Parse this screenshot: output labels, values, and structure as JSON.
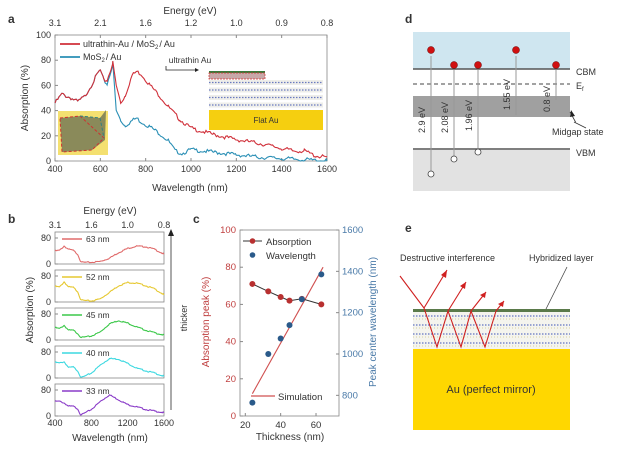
{
  "panel_labels": {
    "a": "a",
    "b": "b",
    "c": "c",
    "d": "d",
    "e": "e"
  },
  "chart_data": [
    {
      "id": "a",
      "type": "line",
      "title": "",
      "top_axis_label": "Energy (eV)",
      "top_ticks": [
        "3.1",
        "2.1",
        "1.6",
        "1.2",
        "1.0",
        "0.9",
        "0.8"
      ],
      "xlabel": "Wavelength (nm)",
      "ylabel": "Absorption (%)",
      "xlim": [
        400,
        1600
      ],
      "ylim": [
        0,
        100
      ],
      "xticks": [
        400,
        600,
        800,
        1000,
        1200,
        1400,
        1600
      ],
      "yticks": [
        0,
        20,
        40,
        60,
        80,
        100
      ],
      "legend_position": "top-left",
      "series": [
        {
          "name": "ultrathin-Au / MoS2/ Au",
          "name_parts": [
            "ultrathin-Au / MoS",
            "2",
            "/ Au"
          ],
          "color": "#d0303a",
          "x": [
            400,
            430,
            470,
            500,
            530,
            560,
            590,
            600,
            615,
            630,
            655,
            670,
            690,
            710,
            740,
            760,
            780,
            820,
            860,
            900,
            950,
            1000,
            1100,
            1200,
            1300,
            1400,
            1450,
            1500,
            1550,
            1600
          ],
          "y": [
            46,
            53,
            50,
            47,
            51,
            60,
            70,
            72,
            64,
            64,
            78,
            60,
            46,
            52,
            68,
            71,
            69,
            60,
            52,
            43,
            33,
            26,
            21,
            17,
            14,
            10,
            8,
            8,
            4,
            3
          ]
        },
        {
          "name": "MoS2/ Au",
          "name_parts": [
            "MoS",
            "2",
            "/ Au"
          ],
          "color": "#2a8fb5",
          "x": [
            400,
            430,
            470,
            500,
            530,
            560,
            590,
            600,
            615,
            630,
            655,
            670,
            690,
            710,
            740,
            760,
            780,
            820,
            860,
            900,
            930,
            960,
            1000,
            1100,
            1200,
            1300,
            1400,
            1500,
            1600
          ],
          "y": [
            46,
            53,
            50,
            47,
            51,
            60,
            70,
            72,
            64,
            61,
            77,
            40,
            32,
            28,
            32,
            34,
            31,
            27,
            22,
            16,
            8,
            6,
            9,
            7,
            5,
            3,
            2,
            1,
            0
          ]
        }
      ],
      "annotations": {
        "inset_label": "ultrathin Au",
        "substrate_label": "Flat Au"
      }
    },
    {
      "id": "b",
      "type": "line",
      "top_axis_label": "Energy (eV)",
      "top_ticks": [
        "3.1",
        "1.6",
        "1.0",
        "0.8"
      ],
      "xlabel": "Wavelength (nm)",
      "ylabel": "Absorption (%)",
      "xlim": [
        400,
        1600
      ],
      "ylim": [
        0,
        80
      ],
      "xticks": [
        400,
        800,
        1200,
        1600
      ],
      "yticks": [
        0,
        80
      ],
      "side_label": "thicker",
      "series": [
        {
          "name": "63 nm",
          "color": "#e06b6b",
          "x": [
            400,
            450,
            500,
            550,
            600,
            650,
            680,
            700,
            800,
            900,
            1000,
            1100,
            1200,
            1300,
            1400,
            1500,
            1600
          ],
          "y": [
            40,
            42,
            55,
            45,
            42,
            30,
            10,
            5,
            5,
            8,
            18,
            35,
            48,
            55,
            53,
            45,
            30
          ]
        },
        {
          "name": "52 nm",
          "color": "#e6c830",
          "x": [
            400,
            450,
            500,
            550,
            600,
            650,
            680,
            700,
            800,
            900,
            1000,
            1100,
            1200,
            1300,
            1400,
            1500,
            1600
          ],
          "y": [
            48,
            46,
            62,
            46,
            45,
            32,
            10,
            5,
            3,
            10,
            30,
            50,
            60,
            58,
            50,
            40,
            22
          ]
        },
        {
          "name": "45 nm",
          "color": "#3cc84a",
          "x": [
            400,
            450,
            500,
            550,
            600,
            650,
            680,
            700,
            800,
            900,
            1000,
            1100,
            1200,
            1300,
            1400,
            1500,
            1600
          ],
          "y": [
            38,
            35,
            45,
            30,
            30,
            20,
            10,
            8,
            12,
            25,
            50,
            60,
            52,
            40,
            30,
            22,
            15
          ]
        },
        {
          "name": "40 nm",
          "color": "#3cd8e0",
          "x": [
            400,
            450,
            500,
            550,
            600,
            650,
            680,
            700,
            800,
            900,
            1000,
            1100,
            1200,
            1300,
            1400,
            1500,
            1600
          ],
          "y": [
            48,
            46,
            50,
            32,
            34,
            22,
            5,
            2,
            15,
            40,
            60,
            58,
            45,
            30,
            22,
            15,
            5
          ]
        },
        {
          "name": "33 nm",
          "color": "#8a3cc8",
          "x": [
            400,
            450,
            500,
            550,
            600,
            650,
            680,
            700,
            800,
            900,
            1000,
            1100,
            1200,
            1300,
            1400,
            1500,
            1600
          ],
          "y": [
            45,
            45,
            40,
            30,
            30,
            22,
            5,
            5,
            20,
            45,
            65,
            50,
            35,
            28,
            20,
            15,
            10
          ]
        }
      ]
    },
    {
      "id": "c",
      "type": "scatter",
      "xlabel": "Thickness (nm)",
      "ylabel": "Absorption peak (%)",
      "y2label": "Peak center wavelength (nm)",
      "xlim": [
        17,
        73
      ],
      "ylim": [
        0,
        100
      ],
      "y2lim": [
        700,
        1600
      ],
      "xticks": [
        20,
        40,
        60
      ],
      "yticks": [
        0,
        20,
        40,
        60,
        80,
        100
      ],
      "y2ticks": [
        800,
        1000,
        1200,
        1400,
        1600
      ],
      "legend_position": "top-left",
      "series": [
        {
          "name": "Absorption",
          "axis": "left",
          "color": "#b83030",
          "line_color": "#333333",
          "x": [
            24,
            33,
            40,
            45,
            52,
            63
          ],
          "y": [
            71,
            67,
            64,
            62,
            63,
            60
          ]
        },
        {
          "name": "Wavelength",
          "axis": "right",
          "color": "#2a5a8a",
          "x": [
            24,
            33,
            40,
            45,
            52,
            63
          ],
          "y": [
            765,
            1000,
            1075,
            1140,
            1265,
            1385
          ]
        },
        {
          "name": "Simulation",
          "axis": "left",
          "color": "#d05050",
          "x": [
            24,
            64
          ],
          "y": [
            12,
            80
          ]
        }
      ]
    }
  ],
  "panel_d": {
    "levels": {
      "cbm": "CBM",
      "ef_main": "E",
      "ef_sub": "f",
      "vbm": "VBM"
    },
    "midgap_label": "Midgap state",
    "transitions": [
      "2.9 eV",
      "2.08 eV",
      "1.96 eV",
      "1.55 eV",
      "0.8 eV"
    ],
    "colors": {
      "conduction": "#cfe6f0",
      "valence": "#e2e2e2",
      "midgap": "#a0a0a0",
      "electron": "#d01010"
    }
  },
  "panel_e": {
    "title_left": "Destructive interference",
    "title_right": "Hybridized layer",
    "mirror_label": "Au (perfect mirror)",
    "colors": {
      "gold": "#ffd700",
      "ray": "#d02020",
      "top_layer": "#5a7a4a"
    }
  }
}
